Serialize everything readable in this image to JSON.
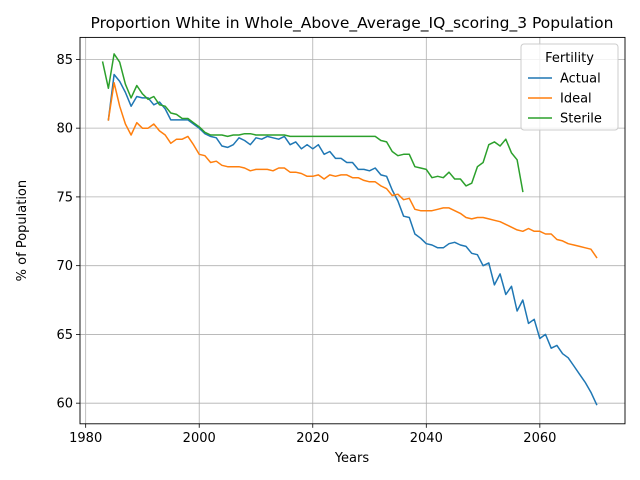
{
  "chart_data": {
    "type": "line",
    "title": "Proportion White in Whole_Above_Average_IQ_scoring_3 Population",
    "xlabel": "Years",
    "ylabel": "% of Population",
    "xlim": [
      1979,
      2075
    ],
    "ylim": [
      58.5,
      86.6
    ],
    "xticks": [
      1980,
      2000,
      2020,
      2040,
      2060
    ],
    "yticks": [
      60,
      65,
      70,
      75,
      80,
      85
    ],
    "grid": true,
    "legend": {
      "title": "Fertility",
      "position": "top-right"
    },
    "colors": {
      "Actual": "#1f77b4",
      "Ideal": "#ff7f0e",
      "Sterile": "#2ca02c"
    },
    "series": [
      {
        "name": "Actual",
        "x": [
          1984,
          1985,
          1986,
          1987,
          1988,
          1989,
          1990,
          1991,
          1992,
          1993,
          1994,
          1995,
          1996,
          1997,
          1998,
          1999,
          2000,
          2001,
          2002,
          2003,
          2004,
          2005,
          2006,
          2007,
          2008,
          2009,
          2010,
          2011,
          2012,
          2013,
          2014,
          2015,
          2016,
          2017,
          2018,
          2019,
          2020,
          2021,
          2022,
          2023,
          2024,
          2025,
          2026,
          2027,
          2028,
          2029,
          2030,
          2031,
          2032,
          2033,
          2034,
          2035,
          2036,
          2037,
          2038,
          2039,
          2040,
          2041,
          2042,
          2043,
          2044,
          2045,
          2046,
          2047,
          2048,
          2049,
          2050,
          2051,
          2052,
          2053,
          2054,
          2055,
          2056,
          2057,
          2058,
          2059,
          2060,
          2061,
          2062,
          2063,
          2064,
          2065,
          2066,
          2067,
          2068,
          2069,
          2070
        ],
        "y": [
          80.6,
          83.9,
          83.4,
          82.6,
          81.6,
          82.3,
          82.2,
          82.2,
          81.7,
          81.9,
          81.4,
          80.6,
          80.6,
          80.6,
          80.6,
          80.3,
          80.0,
          79.6,
          79.4,
          79.3,
          78.7,
          78.6,
          78.8,
          79.3,
          79.1,
          78.8,
          79.3,
          79.2,
          79.4,
          79.3,
          79.2,
          79.4,
          78.8,
          79.0,
          78.5,
          78.8,
          78.5,
          78.8,
          78.1,
          78.3,
          77.8,
          77.8,
          77.5,
          77.5,
          77.0,
          77.0,
          76.9,
          77.1,
          76.6,
          76.5,
          75.5,
          74.7,
          73.6,
          73.5,
          72.3,
          72.0,
          71.6,
          71.5,
          71.3,
          71.3,
          71.6,
          71.7,
          71.5,
          71.4,
          70.9,
          70.8,
          70.0,
          70.2,
          68.6,
          69.4,
          67.9,
          68.5,
          66.7,
          67.5,
          65.8,
          66.1,
          64.7,
          65.0,
          64.0,
          64.2,
          63.6,
          63.3,
          62.7,
          62.1,
          61.5,
          60.8,
          59.9
        ]
      },
      {
        "name": "Ideal",
        "x": [
          1984,
          1985,
          1986,
          1987,
          1988,
          1989,
          1990,
          1991,
          1992,
          1993,
          1994,
          1995,
          1996,
          1997,
          1998,
          1999,
          2000,
          2001,
          2002,
          2003,
          2004,
          2005,
          2006,
          2007,
          2008,
          2009,
          2010,
          2011,
          2012,
          2013,
          2014,
          2015,
          2016,
          2017,
          2018,
          2019,
          2020,
          2021,
          2022,
          2023,
          2024,
          2025,
          2026,
          2027,
          2028,
          2029,
          2030,
          2031,
          2032,
          2033,
          2034,
          2035,
          2036,
          2037,
          2038,
          2039,
          2040,
          2041,
          2042,
          2043,
          2044,
          2045,
          2046,
          2047,
          2048,
          2049,
          2050,
          2051,
          2052,
          2053,
          2054,
          2055,
          2056,
          2057,
          2058,
          2059,
          2060,
          2061,
          2062,
          2063,
          2064,
          2065,
          2066,
          2067,
          2068,
          2069,
          2070
        ],
        "y": [
          80.6,
          83.3,
          81.6,
          80.3,
          79.5,
          80.4,
          80.0,
          80.0,
          80.3,
          79.8,
          79.5,
          78.9,
          79.2,
          79.2,
          79.4,
          78.8,
          78.1,
          78.0,
          77.5,
          77.6,
          77.3,
          77.2,
          77.2,
          77.2,
          77.1,
          76.9,
          77.0,
          77.0,
          77.0,
          76.9,
          77.1,
          77.1,
          76.8,
          76.8,
          76.7,
          76.5,
          76.5,
          76.6,
          76.3,
          76.6,
          76.5,
          76.6,
          76.6,
          76.4,
          76.4,
          76.2,
          76.1,
          76.1,
          75.8,
          75.6,
          75.1,
          75.2,
          74.8,
          74.9,
          74.1,
          74.0,
          74.0,
          74.0,
          74.1,
          74.2,
          74.2,
          74.0,
          73.8,
          73.5,
          73.4,
          73.5,
          73.5,
          73.4,
          73.3,
          73.2,
          73.0,
          72.8,
          72.6,
          72.5,
          72.7,
          72.5,
          72.5,
          72.3,
          72.3,
          71.9,
          71.8,
          71.6,
          71.5,
          71.4,
          71.3,
          71.2,
          70.6
        ]
      },
      {
        "name": "Sterile",
        "x": [
          1983,
          1984,
          1985,
          1986,
          1987,
          1988,
          1989,
          1990,
          1991,
          1992,
          1993,
          1994,
          1995,
          1996,
          1997,
          1998,
          1999,
          2000,
          2001,
          2002,
          2003,
          2004,
          2005,
          2006,
          2007,
          2008,
          2009,
          2010,
          2011,
          2012,
          2013,
          2014,
          2015,
          2016,
          2017,
          2018,
          2019,
          2020,
          2021,
          2022,
          2023,
          2024,
          2025,
          2026,
          2027,
          2028,
          2029,
          2030,
          2031,
          2032,
          2033,
          2034,
          2035,
          2036,
          2037,
          2038,
          2039,
          2040,
          2041,
          2042,
          2043,
          2044,
          2045,
          2046,
          2047,
          2048,
          2049,
          2050,
          2051,
          2052,
          2053,
          2054,
          2055,
          2056,
          2057
        ],
        "y": [
          84.8,
          82.9,
          85.4,
          84.8,
          83.2,
          82.2,
          83.1,
          82.5,
          82.1,
          82.3,
          81.7,
          81.6,
          81.1,
          81.0,
          80.7,
          80.7,
          80.4,
          80.1,
          79.7,
          79.5,
          79.5,
          79.5,
          79.4,
          79.5,
          79.5,
          79.6,
          79.6,
          79.5,
          79.5,
          79.5,
          79.5,
          79.5,
          79.5,
          79.4,
          79.4,
          79.4,
          79.4,
          79.4,
          79.4,
          79.4,
          79.4,
          79.4,
          79.4,
          79.4,
          79.4,
          79.4,
          79.4,
          79.4,
          79.4,
          79.1,
          79.0,
          78.3,
          78.0,
          78.1,
          78.1,
          77.2,
          77.1,
          77.0,
          76.4,
          76.5,
          76.4,
          76.8,
          76.3,
          76.3,
          75.8,
          76.0,
          77.2,
          77.5,
          78.8,
          79.0,
          78.7,
          79.2,
          78.2,
          77.7,
          75.4
        ]
      }
    ]
  }
}
